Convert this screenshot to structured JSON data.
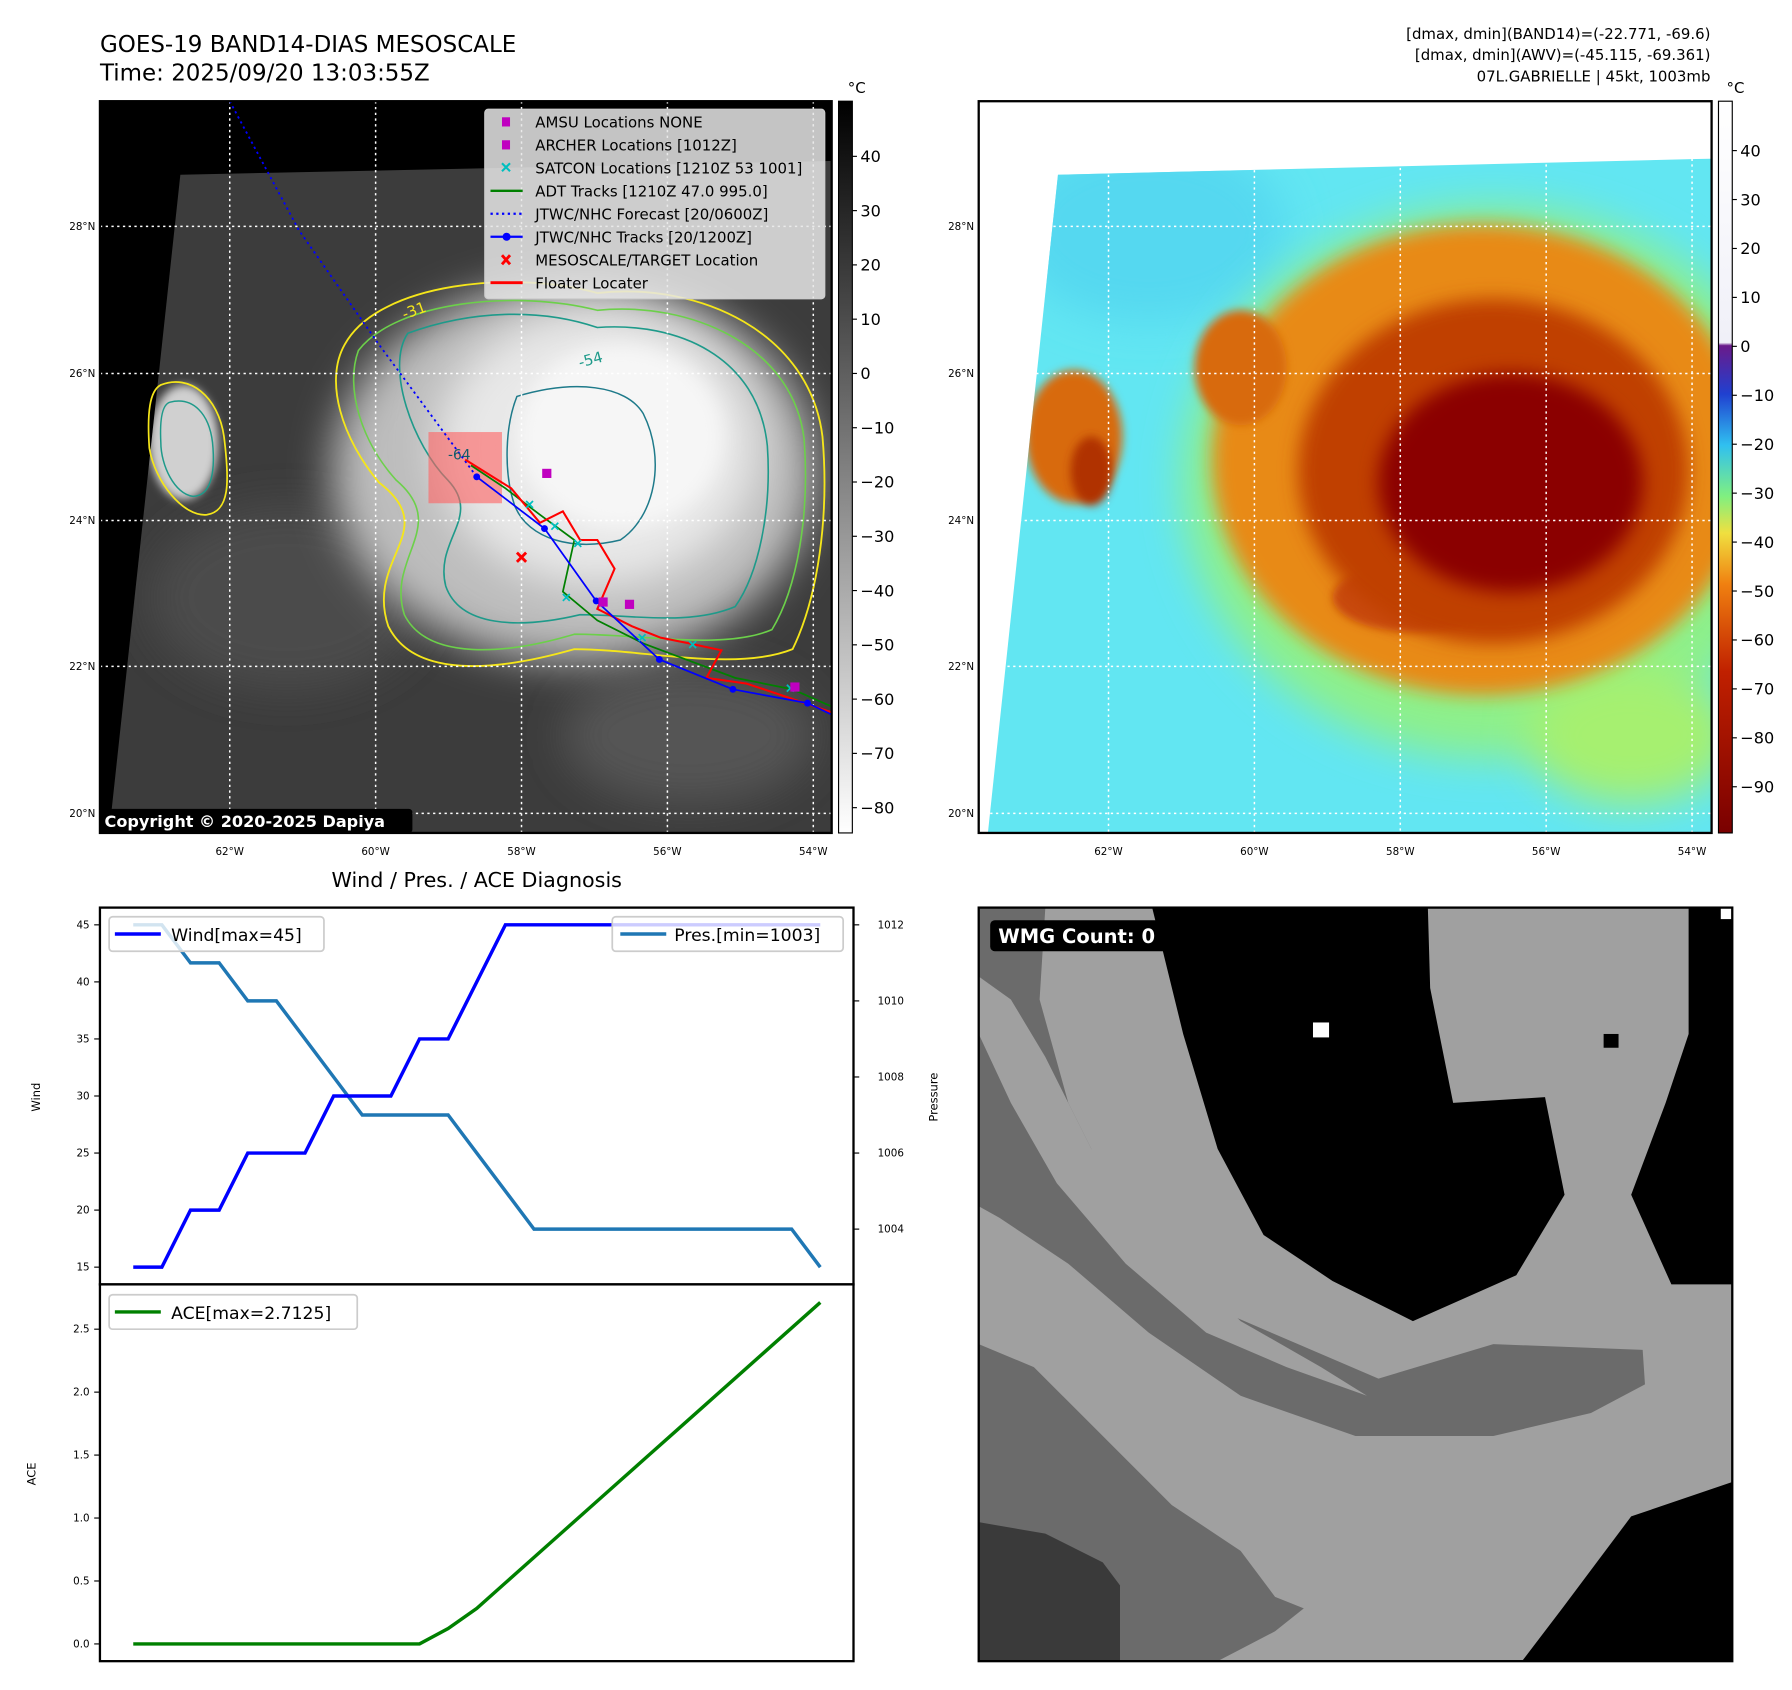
{
  "header": {
    "title": "GOES-19 BAND14-DIAS MESOSCALE",
    "time": "Time: 2025/09/20 13:03:55Z",
    "info": [
      "[dmax, dmin](BAND14)=(-22.771, -69.6)",
      "[dmax, dmin](AWV)=(-45.115, -69.361)",
      "07L.GABRIELLE | 45kt, 1003mb"
    ]
  },
  "map": {
    "lat_labels": [
      "28°N",
      "26°N",
      "24°N",
      "22°N",
      "20°N"
    ],
    "lon_labels": [
      "62°W",
      "60°W",
      "58°W",
      "56°W",
      "54°W"
    ],
    "copyright": "Copyright © 2020-2025 Dapiya",
    "contour_labels": [
      "-31",
      "-54",
      "-64"
    ]
  },
  "legend": [
    {
      "label": "AMSU Locations NONE",
      "icon": "magenta-square",
      "color": "#c000c0"
    },
    {
      "label": "ARCHER Locations [1012Z]",
      "icon": "magenta-square",
      "color": "#c000c0"
    },
    {
      "label": "SATCON Locations [1210Z 53 1001]",
      "icon": "cyan-x",
      "color": "#00bfbf"
    },
    {
      "label": "ADT Tracks [1210Z 47.0 995.0]",
      "icon": "green-line",
      "color": "#008000"
    },
    {
      "label": "JTWC/NHC Forecast [20/0600Z]",
      "icon": "blue-dotted-line",
      "color": "#0000ff"
    },
    {
      "label": "JTWC/NHC Tracks [20/1200Z]",
      "icon": "blue-line-dot",
      "color": "#0000ff"
    },
    {
      "label": "MESOSCALE/TARGET Location",
      "icon": "red-x",
      "color": "#ff0000"
    },
    {
      "label": "Floater Locater",
      "icon": "red-line",
      "color": "#ff0000"
    }
  ],
  "colorbar1": {
    "unit": "°C",
    "ticks": [
      40,
      30,
      20,
      10,
      0,
      -10,
      -20,
      -30,
      -40,
      -50,
      -60,
      -70,
      -80
    ]
  },
  "colorbar2": {
    "unit": "°C",
    "ticks": [
      40,
      30,
      20,
      10,
      0,
      -10,
      -20,
      -30,
      -40,
      -50,
      -60,
      -70,
      -80,
      -90
    ]
  },
  "wmg": {
    "label": "WMG Count: 0"
  },
  "colors": {
    "wind": "#0000ff",
    "pressure": "#1f77b4",
    "ace": "#008000"
  },
  "chart_data": [
    {
      "type": "line",
      "title": "Wind / Pres. / ACE Diagnosis",
      "ylabel": "Wind",
      "y2label": "Pressure",
      "yticks": [
        15,
        20,
        25,
        30,
        35,
        40,
        45
      ],
      "y2ticks": [
        1004,
        1006,
        1008,
        1010,
        1012
      ],
      "ylim": [
        15,
        45
      ],
      "y2lim": [
        1003,
        1012
      ],
      "series": [
        {
          "name": "Wind[max=45]",
          "axis": "left",
          "values": [
            15,
            15,
            20,
            20,
            25,
            25,
            25,
            30,
            30,
            30,
            35,
            35,
            40,
            45,
            45,
            45,
            45,
            45,
            45,
            45,
            45,
            45,
            45,
            45,
            45
          ]
        },
        {
          "name": "Pres.[min=1003]",
          "axis": "right",
          "values": [
            1012,
            1012,
            1011,
            1011,
            1010,
            1010,
            1009,
            1008,
            1007,
            1007,
            1007,
            1007,
            1006,
            1005,
            1004,
            1004,
            1004,
            1004,
            1004,
            1004,
            1004,
            1004,
            1004,
            1004,
            1003
          ]
        }
      ]
    },
    {
      "type": "line",
      "ylabel": "ACE",
      "yticks": [
        0.0,
        0.5,
        1.0,
        1.5,
        2.0,
        2.5
      ],
      "series": [
        {
          "name": "ACE[max=2.7125]",
          "values": [
            0,
            0,
            0,
            0,
            0,
            0,
            0,
            0,
            0,
            0,
            0,
            0.1225,
            0.2825,
            0.485,
            0.6875,
            0.89,
            1.0925,
            1.295,
            1.4975,
            1.7,
            1.9025,
            2.105,
            2.3075,
            2.51,
            2.7125
          ]
        }
      ]
    }
  ]
}
